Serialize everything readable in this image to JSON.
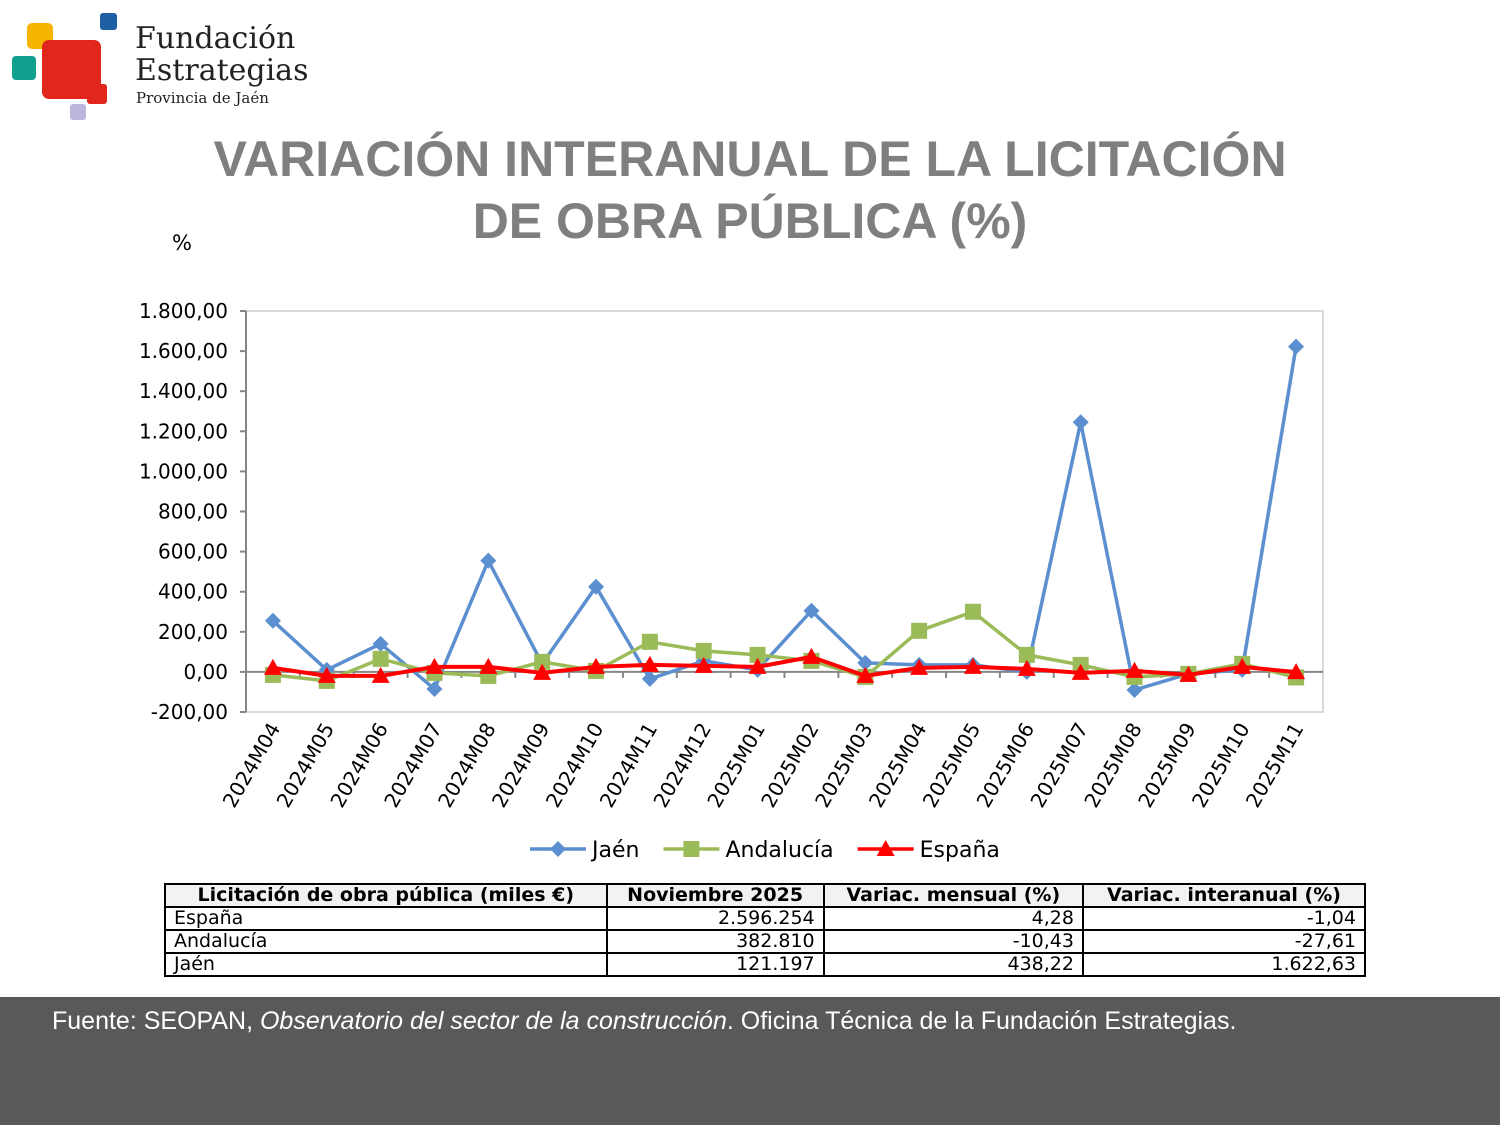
{
  "logo": {
    "line1": "Fundación",
    "line2": "Estrategias",
    "line3": "Provincia de Jaén"
  },
  "chart_data": {
    "type": "line",
    "title": [
      "VARIACIÓN INTERANUAL DE LA LICITACIÓN",
      "DE OBRA PÚBLICA (%)"
    ],
    "y_label": "%",
    "categories": [
      "2024M04",
      "2024M05",
      "2024M06",
      "2024M07",
      "2024M08",
      "2024M09",
      "2024M10",
      "2024M11",
      "2024M12",
      "2025M01",
      "2025M02",
      "2025M03",
      "2025M04",
      "2025M05",
      "2025M06",
      "2025M07",
      "2025M08",
      "2025M09",
      "2025M10",
      "2025M11"
    ],
    "series": [
      {
        "name": "Jaén",
        "color": "#5b8fd0",
        "marker": "diamond",
        "values": [
          255,
          10,
          140,
          -85,
          555,
          40,
          425,
          -35,
          55,
          10,
          305,
          45,
          35,
          35,
          0,
          1245,
          -90,
          -10,
          10,
          1622.63
        ]
      },
      {
        "name": "Andalucía",
        "color": "#9bbb59",
        "marker": "square",
        "values": [
          -15,
          -45,
          65,
          -5,
          -20,
          50,
          5,
          150,
          105,
          85,
          55,
          -25,
          205,
          300,
          85,
          35,
          -25,
          -10,
          40,
          -27.61
        ]
      },
      {
        "name": "España",
        "color": "#ff0000",
        "marker": "triangle",
        "values": [
          20,
          -20,
          -20,
          25,
          25,
          -5,
          25,
          35,
          30,
          25,
          75,
          -20,
          20,
          25,
          15,
          -5,
          5,
          -15,
          25,
          -1.04
        ]
      }
    ],
    "ylim": [
      -200,
      1800
    ],
    "yticks": [
      {
        "value": -200,
        "label": "-200,00"
      },
      {
        "value": 0,
        "label": "0,00"
      },
      {
        "value": 200,
        "label": "200,00"
      },
      {
        "value": 400,
        "label": "400,00"
      },
      {
        "value": 600,
        "label": "600,00"
      },
      {
        "value": 800,
        "label": "800,00"
      },
      {
        "value": 1000,
        "label": "1.000,00"
      },
      {
        "value": 1200,
        "label": "1.200,00"
      },
      {
        "value": 1400,
        "label": "1.400,00"
      },
      {
        "value": 1600,
        "label": "1.600,00"
      },
      {
        "value": 1800,
        "label": "1.800,00"
      }
    ],
    "grid": false,
    "legend": "bottom"
  },
  "table": {
    "header": [
      "Licitación de obra pública (miles €)",
      "Noviembre 2025",
      "Variac. mensual (%)",
      "Variac. interanual (%)"
    ],
    "rows": [
      [
        "España",
        "2.596.254",
        "4,28",
        "-1,04"
      ],
      [
        "Andalucía",
        "382.810",
        "-10,43",
        "-27,61"
      ],
      [
        "Jaén",
        "121.197",
        "438,22",
        "1.622,63"
      ]
    ]
  },
  "footer": [
    "Fuente: SEOPAN, ",
    "Observatorio del sector de la construcción",
    ". Oficina Técnica de la Fundación Estrategias."
  ]
}
